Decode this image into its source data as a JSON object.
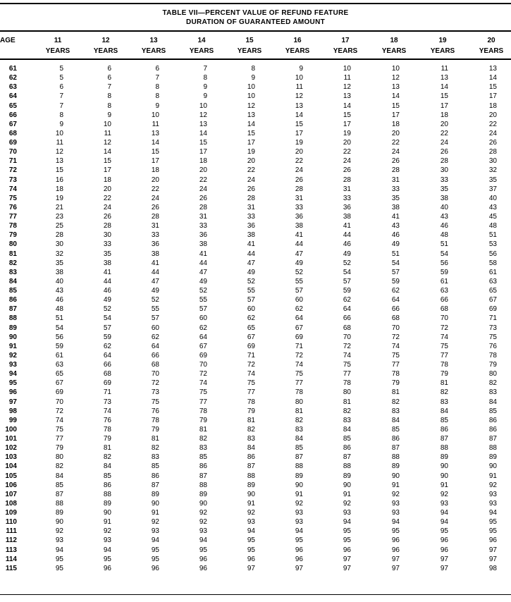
{
  "table": {
    "title": "TABLE VII—PERCENT VALUE OF REFUND FEATURE",
    "subtitle": "DURATION OF GUARANTEED AMOUNT",
    "age_header": "AGE",
    "columns": [
      {
        "num": "11",
        "unit": "YEARS"
      },
      {
        "num": "12",
        "unit": "YEARS"
      },
      {
        "num": "13",
        "unit": "YEARS"
      },
      {
        "num": "14",
        "unit": "YEARS"
      },
      {
        "num": "15",
        "unit": "YEARS"
      },
      {
        "num": "16",
        "unit": "YEARS"
      },
      {
        "num": "17",
        "unit": "YEARS"
      },
      {
        "num": "18",
        "unit": "YEARS"
      },
      {
        "num": "19",
        "unit": "YEARS"
      },
      {
        "num": "20",
        "unit": "YEARS"
      }
    ],
    "rows": [
      {
        "age": "61",
        "values": [
          5,
          6,
          6,
          7,
          8,
          9,
          10,
          10,
          11,
          13
        ]
      },
      {
        "age": "62",
        "values": [
          5,
          6,
          7,
          8,
          9,
          10,
          11,
          12,
          13,
          14
        ]
      },
      {
        "age": "63",
        "values": [
          6,
          7,
          8,
          9,
          10,
          11,
          12,
          13,
          14,
          15
        ]
      },
      {
        "age": "64",
        "values": [
          7,
          8,
          8,
          9,
          10,
          12,
          13,
          14,
          15,
          17
        ]
      },
      {
        "age": "65",
        "values": [
          7,
          8,
          9,
          10,
          12,
          13,
          14,
          15,
          17,
          18
        ]
      },
      {
        "age": "66",
        "values": [
          8,
          9,
          10,
          12,
          13,
          14,
          15,
          17,
          18,
          20
        ]
      },
      {
        "age": "67",
        "values": [
          9,
          10,
          11,
          13,
          14,
          15,
          17,
          18,
          20,
          22
        ]
      },
      {
        "age": "68",
        "values": [
          10,
          11,
          13,
          14,
          15,
          17,
          19,
          20,
          22,
          24
        ]
      },
      {
        "age": "69",
        "values": [
          11,
          12,
          14,
          15,
          17,
          19,
          20,
          22,
          24,
          26
        ]
      },
      {
        "age": "70",
        "values": [
          12,
          14,
          15,
          17,
          19,
          20,
          22,
          24,
          26,
          28
        ]
      },
      {
        "age": "71",
        "values": [
          13,
          15,
          17,
          18,
          20,
          22,
          24,
          26,
          28,
          30
        ]
      },
      {
        "age": "72",
        "values": [
          15,
          17,
          18,
          20,
          22,
          24,
          26,
          28,
          30,
          32
        ]
      },
      {
        "age": "73",
        "values": [
          16,
          18,
          20,
          22,
          24,
          26,
          28,
          31,
          33,
          35
        ]
      },
      {
        "age": "74",
        "values": [
          18,
          20,
          22,
          24,
          26,
          28,
          31,
          33,
          35,
          37
        ]
      },
      {
        "age": "75",
        "values": [
          19,
          22,
          24,
          26,
          28,
          31,
          33,
          35,
          38,
          40
        ]
      },
      {
        "age": "76",
        "values": [
          21,
          24,
          26,
          28,
          31,
          33,
          36,
          38,
          40,
          43
        ]
      },
      {
        "age": "77",
        "values": [
          23,
          26,
          28,
          31,
          33,
          36,
          38,
          41,
          43,
          45
        ]
      },
      {
        "age": "78",
        "values": [
          25,
          28,
          31,
          33,
          36,
          38,
          41,
          43,
          46,
          48
        ]
      },
      {
        "age": "79",
        "values": [
          28,
          30,
          33,
          36,
          38,
          41,
          44,
          46,
          48,
          51
        ]
      },
      {
        "age": "80",
        "values": [
          30,
          33,
          36,
          38,
          41,
          44,
          46,
          49,
          51,
          53
        ]
      },
      {
        "age": "81",
        "values": [
          32,
          35,
          38,
          41,
          44,
          47,
          49,
          51,
          54,
          56
        ]
      },
      {
        "age": "82",
        "values": [
          35,
          38,
          41,
          44,
          47,
          49,
          52,
          54,
          56,
          58
        ]
      },
      {
        "age": "83",
        "values": [
          38,
          41,
          44,
          47,
          49,
          52,
          54,
          57,
          59,
          61
        ]
      },
      {
        "age": "84",
        "values": [
          40,
          44,
          47,
          49,
          52,
          55,
          57,
          59,
          61,
          63
        ]
      },
      {
        "age": "85",
        "values": [
          43,
          46,
          49,
          52,
          55,
          57,
          59,
          62,
          63,
          65
        ]
      },
      {
        "age": "86",
        "values": [
          46,
          49,
          52,
          55,
          57,
          60,
          62,
          64,
          66,
          67
        ]
      },
      {
        "age": "87",
        "values": [
          48,
          52,
          55,
          57,
          60,
          62,
          64,
          66,
          68,
          69
        ]
      },
      {
        "age": "88",
        "values": [
          51,
          54,
          57,
          60,
          62,
          64,
          66,
          68,
          70,
          71
        ]
      },
      {
        "age": "89",
        "values": [
          54,
          57,
          60,
          62,
          65,
          67,
          68,
          70,
          72,
          73
        ]
      },
      {
        "age": "90",
        "values": [
          56,
          59,
          62,
          64,
          67,
          69,
          70,
          72,
          74,
          75
        ]
      },
      {
        "age": "91",
        "values": [
          59,
          62,
          64,
          67,
          69,
          71,
          72,
          74,
          75,
          76
        ]
      },
      {
        "age": "92",
        "values": [
          61,
          64,
          66,
          69,
          71,
          72,
          74,
          75,
          77,
          78
        ]
      },
      {
        "age": "93",
        "values": [
          63,
          66,
          68,
          70,
          72,
          74,
          75,
          77,
          78,
          79
        ]
      },
      {
        "age": "94",
        "values": [
          65,
          68,
          70,
          72,
          74,
          75,
          77,
          78,
          79,
          80
        ]
      },
      {
        "age": "95",
        "values": [
          67,
          69,
          72,
          74,
          75,
          77,
          78,
          79,
          81,
          82
        ]
      },
      {
        "age": "96",
        "values": [
          69,
          71,
          73,
          75,
          77,
          78,
          80,
          81,
          82,
          83
        ]
      },
      {
        "age": "97",
        "values": [
          70,
          73,
          75,
          77,
          78,
          80,
          81,
          82,
          83,
          84
        ]
      },
      {
        "age": "98",
        "values": [
          72,
          74,
          76,
          78,
          79,
          81,
          82,
          83,
          84,
          85
        ]
      },
      {
        "age": "99",
        "values": [
          74,
          76,
          78,
          79,
          81,
          82,
          83,
          84,
          85,
          86
        ]
      },
      {
        "age": "100",
        "values": [
          75,
          78,
          79,
          81,
          82,
          83,
          84,
          85,
          86,
          86
        ]
      },
      {
        "age": "101",
        "values": [
          77,
          79,
          81,
          82,
          83,
          84,
          85,
          86,
          87,
          87
        ]
      },
      {
        "age": "102",
        "values": [
          79,
          81,
          82,
          83,
          84,
          85,
          86,
          87,
          88,
          88
        ]
      },
      {
        "age": "103",
        "values": [
          80,
          82,
          83,
          85,
          86,
          87,
          87,
          88,
          89,
          89
        ]
      },
      {
        "age": "104",
        "values": [
          82,
          84,
          85,
          86,
          87,
          88,
          88,
          89,
          90,
          90
        ]
      },
      {
        "age": "105",
        "values": [
          84,
          85,
          86,
          87,
          88,
          89,
          89,
          90,
          90,
          91
        ]
      },
      {
        "age": "106",
        "values": [
          85,
          86,
          87,
          88,
          89,
          90,
          90,
          91,
          91,
          92
        ]
      },
      {
        "age": "107",
        "values": [
          87,
          88,
          89,
          89,
          90,
          91,
          91,
          92,
          92,
          93
        ]
      },
      {
        "age": "108",
        "values": [
          88,
          89,
          90,
          90,
          91,
          92,
          92,
          93,
          93,
          93
        ]
      },
      {
        "age": "109",
        "values": [
          89,
          90,
          91,
          92,
          92,
          93,
          93,
          93,
          94,
          94
        ]
      },
      {
        "age": "110",
        "values": [
          90,
          91,
          92,
          92,
          93,
          93,
          94,
          94,
          94,
          95
        ]
      },
      {
        "age": "111",
        "values": [
          92,
          92,
          93,
          93,
          94,
          94,
          95,
          95,
          95,
          95
        ]
      },
      {
        "age": "112",
        "values": [
          93,
          93,
          94,
          94,
          95,
          95,
          95,
          96,
          96,
          96
        ]
      },
      {
        "age": "113",
        "values": [
          94,
          94,
          95,
          95,
          95,
          96,
          96,
          96,
          96,
          97
        ]
      },
      {
        "age": "114",
        "values": [
          95,
          95,
          95,
          96,
          96,
          96,
          97,
          97,
          97,
          97
        ]
      },
      {
        "age": "115",
        "values": [
          95,
          96,
          96,
          96,
          97,
          97,
          97,
          97,
          97,
          98
        ]
      }
    ]
  }
}
